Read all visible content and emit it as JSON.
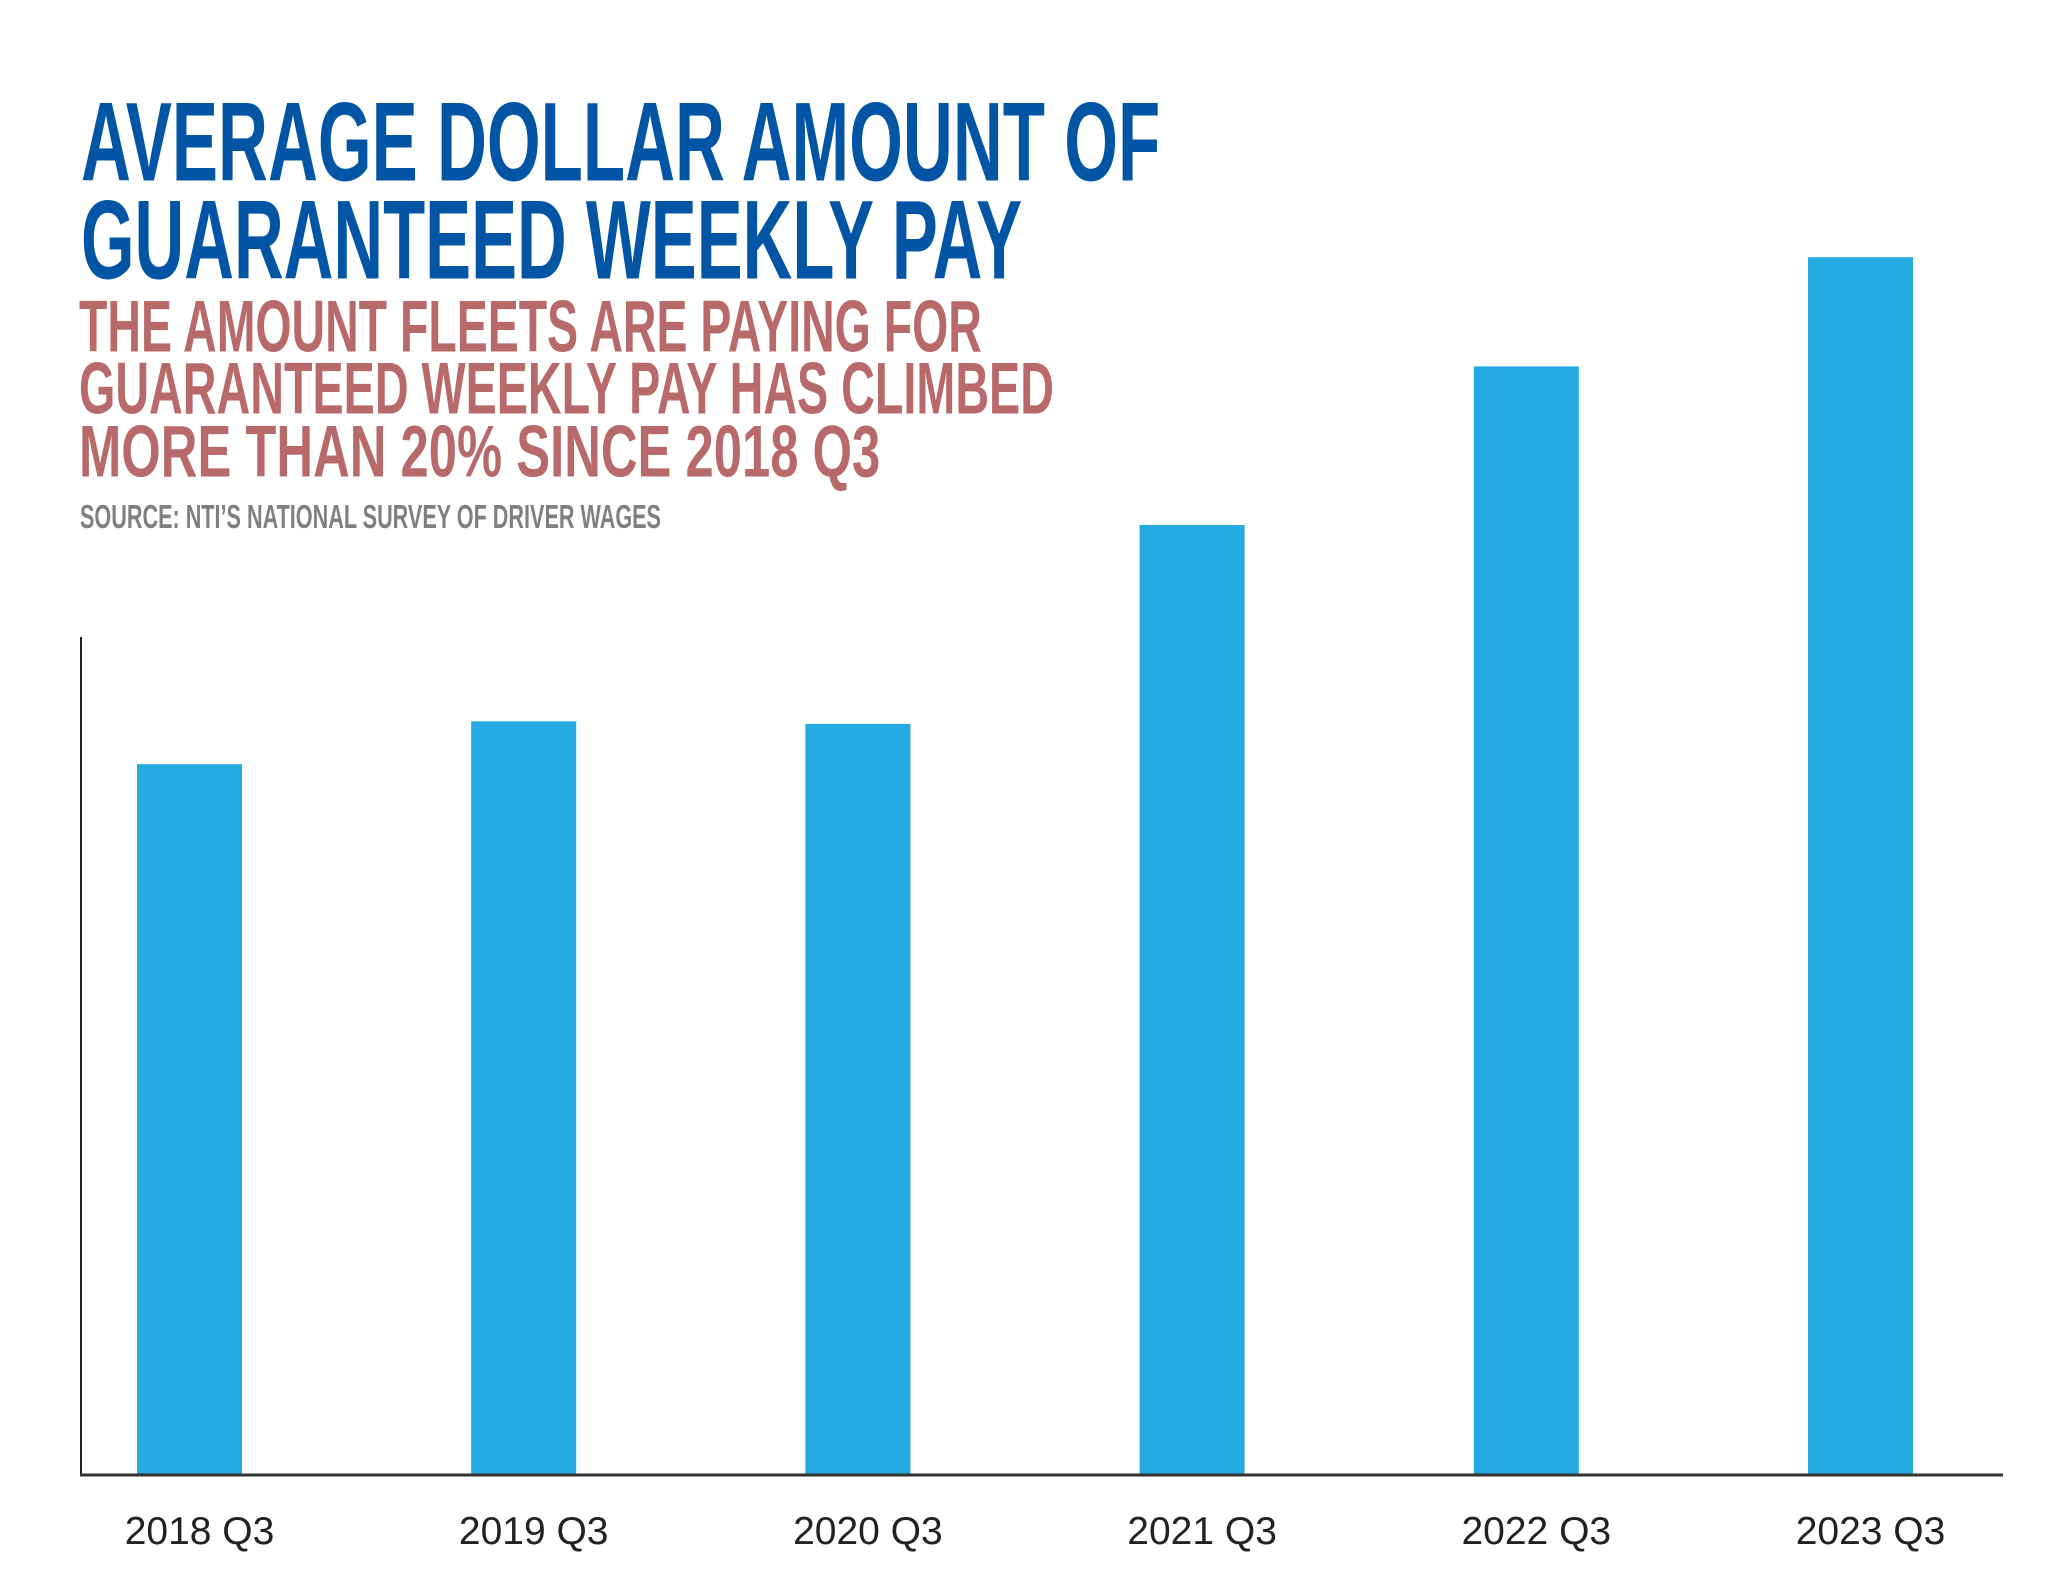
{
  "chart_data": {
    "type": "bar",
    "title": "AVERAGE DOLLAR AMOUNT OF GUARANTEED WEEKLY PAY",
    "title_lines": [
      "AVERAGE DOLLAR AMOUNT OF",
      "GUARANTEED WEEKLY PAY"
    ],
    "subtitle_lines": [
      "THE AMOUNT FLEETS ARE PAYING FOR",
      "GUARANTEED WEEKLY PAY HAS CLIMBED",
      "MORE THAN 20% SINCE 2018 Q3"
    ],
    "source": "SOURCE: NTI’S NATIONAL SURVEY OF DRIVER WAGES",
    "categories": [
      "2018 Q3",
      "2019 Q3",
      "2020 Q3",
      "2021 Q3",
      "2022 Q3",
      "2023 Q3"
    ],
    "values": [
      54.6,
      57.9,
      57.7,
      73.0,
      85.2,
      93.6
    ],
    "ylim": [
      0,
      100
    ],
    "y_axis_labels": false,
    "grid": false,
    "xlabel": "",
    "ylabel": "",
    "colors": {
      "bar": "#25AAE1",
      "title": "#0255A5",
      "subtitle": "#B86A6A",
      "source": "#808080",
      "axis": "#222222"
    }
  }
}
